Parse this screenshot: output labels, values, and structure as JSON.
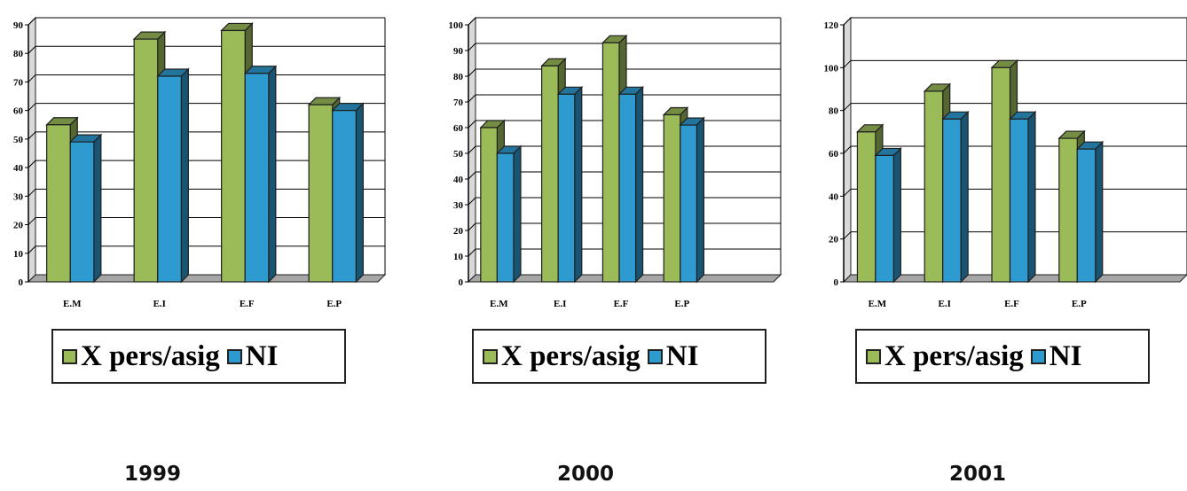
{
  "colors": {
    "x_pers_asig": "#9bbb59",
    "ni": "#2e9bd0",
    "outline": "#1f1f1f"
  },
  "chart_data": [
    {
      "type": "bar",
      "title": "1999",
      "categories": [
        "E.M",
        "E.I",
        "E.F",
        "E.P"
      ],
      "ylim": [
        0,
        90
      ],
      "yticks": [
        "0",
        "10",
        "20",
        "30",
        "40",
        "50",
        "60",
        "70",
        "80",
        "90"
      ],
      "grid": true,
      "legend_position": "bottom",
      "series": [
        {
          "name": "X pers/asig",
          "values": [
            55,
            85,
            88,
            62
          ]
        },
        {
          "name": "NI",
          "values": [
            49,
            72,
            73,
            60
          ]
        }
      ]
    },
    {
      "type": "bar",
      "title": "2000",
      "categories": [
        "E.M",
        "E.I",
        "E.F",
        "E.P"
      ],
      "ylim": [
        0,
        100
      ],
      "yticks": [
        "0",
        "10",
        "20",
        "30",
        "40",
        "50",
        "60",
        "70",
        "80",
        "90",
        "100"
      ],
      "grid": true,
      "legend_position": "bottom",
      "series": [
        {
          "name": "X pers/asig",
          "values": [
            60,
            84,
            93,
            65
          ]
        },
        {
          "name": "NI",
          "values": [
            50,
            73,
            73,
            61
          ]
        }
      ]
    },
    {
      "type": "bar",
      "title": "2001",
      "categories": [
        "E.M",
        "E.I",
        "E.F",
        "E.P"
      ],
      "ylim": [
        0,
        120
      ],
      "yticks": [
        "0",
        "20",
        "40",
        "60",
        "80",
        "100",
        "120"
      ],
      "grid": true,
      "legend_position": "bottom",
      "series": [
        {
          "name": "X pers/asig",
          "values": [
            70,
            89,
            100,
            67
          ]
        },
        {
          "name": "NI",
          "values": [
            59,
            76,
            76,
            62
          ]
        }
      ]
    }
  ],
  "legend": {
    "item1": "X pers/asig",
    "item2": "NI"
  },
  "years": [
    "1999",
    "2000",
    "2001"
  ]
}
